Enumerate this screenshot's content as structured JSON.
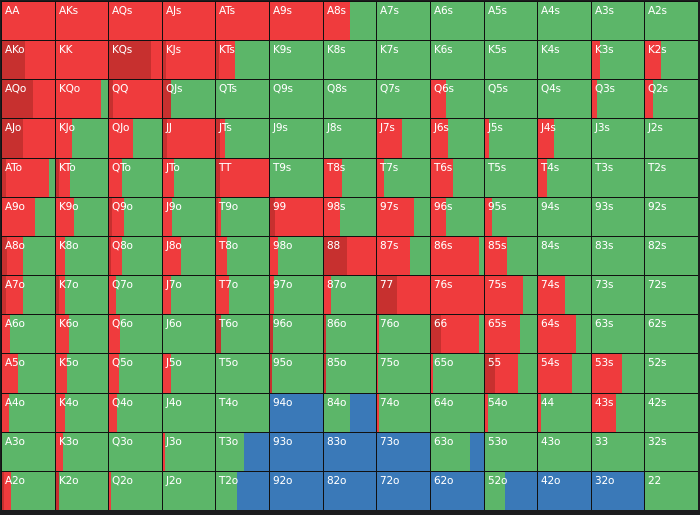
{
  "chart_data": {
    "type": "heatmap",
    "description_of_values": "per hand: [hand, dark-red %, red %, blue %]; remainder green",
    "colors": {
      "dark_red": "#c7302f",
      "red": "#ef3b3d",
      "green": "#5cb669",
      "blue": "#3a79b8"
    },
    "rows": [
      [
        [
          "AA",
          0,
          100,
          0
        ],
        [
          "AKs",
          0,
          100,
          0
        ],
        [
          "AQs",
          0,
          100,
          0
        ],
        [
          "AJs",
          0,
          100,
          0
        ],
        [
          "ATs",
          0,
          100,
          0
        ],
        [
          "A9s",
          0,
          100,
          0
        ],
        [
          "A8s",
          0,
          50,
          0
        ],
        [
          "A7s",
          0,
          0,
          0
        ],
        [
          "A6s",
          0,
          0,
          0
        ],
        [
          "A5s",
          0,
          0,
          0
        ],
        [
          "A4s",
          0,
          0,
          0
        ],
        [
          "A3s",
          0,
          0,
          0
        ],
        [
          "A2s",
          0,
          0,
          0
        ]
      ],
      [
        [
          "AKo",
          43,
          57,
          0
        ],
        [
          "KK",
          0,
          100,
          0
        ],
        [
          "KQs",
          80,
          20,
          0
        ],
        [
          "KJs",
          6,
          94,
          0
        ],
        [
          "KTs",
          5,
          31,
          0
        ],
        [
          "K9s",
          0,
          0,
          0
        ],
        [
          "K8s",
          0,
          0,
          0
        ],
        [
          "K7s",
          0,
          0,
          0
        ],
        [
          "K6s",
          0,
          0,
          0
        ],
        [
          "K5s",
          0,
          0,
          0
        ],
        [
          "K4s",
          0,
          0,
          0
        ],
        [
          "K3s",
          0,
          15,
          0
        ],
        [
          "K2s",
          0,
          30,
          0
        ]
      ],
      [
        [
          "AQo",
          58,
          42,
          0
        ],
        [
          "KQo",
          0,
          87,
          0
        ],
        [
          "QQ",
          8,
          92,
          0
        ],
        [
          "QJs",
          16,
          0,
          0
        ],
        [
          "QTs",
          0,
          0,
          0
        ],
        [
          "Q9s",
          0,
          0,
          0
        ],
        [
          "Q8s",
          0,
          0,
          0
        ],
        [
          "Q7s",
          0,
          0,
          0
        ],
        [
          "Q6s",
          0,
          28,
          0
        ],
        [
          "Q5s",
          0,
          0,
          0
        ],
        [
          "Q4s",
          0,
          0,
          0
        ],
        [
          "Q3s",
          0,
          10,
          0
        ],
        [
          "Q2s",
          0,
          15,
          0
        ]
      ],
      [
        [
          "AJo",
          40,
          60,
          0
        ],
        [
          "KJo",
          0,
          31,
          0
        ],
        [
          "QJo",
          0,
          45,
          0
        ],
        [
          "JJ",
          8,
          92,
          0
        ],
        [
          "JTs",
          8,
          9,
          0
        ],
        [
          "J9s",
          0,
          0,
          0
        ],
        [
          "J8s",
          0,
          0,
          0
        ],
        [
          "J7s",
          0,
          48,
          0
        ],
        [
          "J6s",
          0,
          32,
          0
        ],
        [
          "J5s",
          0,
          7,
          0
        ],
        [
          "J4s",
          0,
          30,
          0
        ],
        [
          "J3s",
          0,
          0,
          0
        ],
        [
          "J2s",
          0,
          0,
          0
        ]
      ],
      [
        [
          "ATo",
          8,
          81,
          0
        ],
        [
          "KTo",
          5,
          21,
          0
        ],
        [
          "QTo",
          0,
          24,
          0
        ],
        [
          "JTo",
          0,
          22,
          0
        ],
        [
          "TT",
          8,
          92,
          0
        ],
        [
          "T9s",
          0,
          0,
          0
        ],
        [
          "T8s",
          0,
          34,
          0
        ],
        [
          "T7s",
          0,
          13,
          0
        ],
        [
          "T6s",
          0,
          41,
          0
        ],
        [
          "T5s",
          0,
          0,
          0
        ],
        [
          "T4s",
          0,
          17,
          0
        ],
        [
          "T3s",
          0,
          0,
          0
        ],
        [
          "T2s",
          0,
          0,
          0
        ]
      ],
      [
        [
          "A9o",
          0,
          62,
          0
        ],
        [
          "K9o",
          0,
          34,
          0
        ],
        [
          "Q9o",
          5,
          23,
          0
        ],
        [
          "J9o",
          0,
          18,
          0
        ],
        [
          "T9o",
          3,
          6,
          0
        ],
        [
          "99",
          10,
          90,
          0
        ],
        [
          "98s",
          0,
          30,
          0
        ],
        [
          "97s",
          0,
          70,
          0
        ],
        [
          "96s",
          0,
          28,
          0
        ],
        [
          "95s",
          0,
          13,
          0
        ],
        [
          "94s",
          0,
          0,
          0
        ],
        [
          "93s",
          0,
          0,
          0
        ],
        [
          "92s",
          0,
          0,
          0
        ]
      ],
      [
        [
          "A8o",
          10,
          30,
          0
        ],
        [
          "K8o",
          0,
          17,
          0
        ],
        [
          "Q8o",
          3,
          21,
          0
        ],
        [
          "J8o",
          0,
          34,
          0
        ],
        [
          "T8o",
          0,
          20,
          0
        ],
        [
          "98o",
          0,
          15,
          0
        ],
        [
          "88",
          45,
          55,
          0
        ],
        [
          "87s",
          0,
          62,
          0
        ],
        [
          "86s",
          0,
          90,
          0
        ],
        [
          "85s",
          0,
          42,
          0
        ],
        [
          "84s",
          0,
          0,
          0
        ],
        [
          "83s",
          0,
          0,
          0
        ],
        [
          "82s",
          0,
          0,
          0
        ]
      ],
      [
        [
          "A7o",
          8,
          32,
          0
        ],
        [
          "K7o",
          5,
          12,
          0
        ],
        [
          "Q7o",
          0,
          13,
          0
        ],
        [
          "J7o",
          0,
          16,
          0
        ],
        [
          "T7o",
          0,
          24,
          0
        ],
        [
          "97o",
          0,
          8,
          0
        ],
        [
          "87o",
          0,
          13,
          0
        ],
        [
          "77",
          38,
          62,
          0
        ],
        [
          "76s",
          0,
          100,
          0
        ],
        [
          "75s",
          0,
          73,
          0
        ],
        [
          "74s",
          0,
          50,
          0
        ],
        [
          "73s",
          0,
          0,
          0
        ],
        [
          "72s",
          0,
          0,
          0
        ]
      ],
      [
        [
          "A6o",
          0,
          15,
          0
        ],
        [
          "K6o",
          0,
          25,
          0
        ],
        [
          "Q6o",
          0,
          20,
          0
        ],
        [
          "J6o",
          0,
          0,
          0
        ],
        [
          "T6o",
          9,
          0,
          0
        ],
        [
          "96o",
          5,
          0,
          0
        ],
        [
          "86o",
          4,
          0,
          0
        ],
        [
          "76o",
          0,
          3,
          0
        ],
        [
          "66",
          18,
          72,
          0
        ],
        [
          "65s",
          0,
          67,
          0
        ],
        [
          "64s",
          0,
          72,
          0
        ],
        [
          "63s",
          0,
          0,
          0
        ],
        [
          "62s",
          0,
          0,
          0
        ]
      ],
      [
        [
          "A5o",
          0,
          30,
          0
        ],
        [
          "K5o",
          0,
          21,
          0
        ],
        [
          "Q5o",
          0,
          18,
          0
        ],
        [
          "J5o",
          0,
          15,
          0
        ],
        [
          "T5o",
          0,
          0,
          0
        ],
        [
          "95o",
          4,
          0,
          0
        ],
        [
          "85o",
          4,
          0,
          0
        ],
        [
          "75o",
          0,
          2,
          0
        ],
        [
          "65o",
          0,
          3,
          0
        ],
        [
          "55",
          20,
          44,
          0
        ],
        [
          "54s",
          0,
          64,
          0
        ],
        [
          "53s",
          0,
          57,
          0
        ],
        [
          "52s",
          0,
          0,
          0
        ]
      ],
      [
        [
          "A4o",
          0,
          13,
          0
        ],
        [
          "K4o",
          0,
          18,
          0
        ],
        [
          "Q4o",
          0,
          15,
          0
        ],
        [
          "J4o",
          0,
          0,
          0
        ],
        [
          "T4o",
          0,
          0,
          0
        ],
        [
          "94o",
          0,
          0,
          100
        ],
        [
          "84o",
          0,
          0,
          50
        ],
        [
          "74o",
          0,
          4,
          0
        ],
        [
          "64o",
          0,
          0,
          0
        ],
        [
          "54o",
          0,
          6,
          0
        ],
        [
          "44",
          0,
          6,
          0
        ],
        [
          "43s",
          0,
          47,
          0
        ],
        [
          "42s",
          0,
          0,
          0
        ]
      ],
      [
        [
          "A3o",
          0,
          0,
          0
        ],
        [
          "K3o",
          0,
          13,
          0
        ],
        [
          "Q3o",
          0,
          0,
          0
        ],
        [
          "J3o",
          0,
          3,
          0
        ],
        [
          "T3o",
          0,
          0,
          48
        ],
        [
          "93o",
          0,
          0,
          100
        ],
        [
          "83o",
          0,
          0,
          100
        ],
        [
          "73o",
          0,
          0,
          100
        ],
        [
          "63o",
          0,
          0,
          27
        ],
        [
          "53o",
          0,
          0,
          0
        ],
        [
          "43o",
          0,
          0,
          0
        ],
        [
          "33",
          0,
          0,
          0
        ],
        [
          "32s",
          0,
          0,
          0
        ]
      ],
      [
        [
          "A2o",
          3,
          14,
          0
        ],
        [
          "K2o",
          6,
          0,
          0
        ],
        [
          "Q2o",
          0,
          3,
          0
        ],
        [
          "J2o",
          0,
          0,
          0
        ],
        [
          "T2o",
          0,
          0,
          60
        ],
        [
          "92o",
          0,
          0,
          100
        ],
        [
          "82o",
          0,
          0,
          100
        ],
        [
          "72o",
          0,
          0,
          100
        ],
        [
          "62o",
          0,
          0,
          100
        ],
        [
          "52o",
          0,
          0,
          62
        ],
        [
          "42o",
          0,
          0,
          100
        ],
        [
          "32o",
          0,
          0,
          100
        ],
        [
          "22",
          0,
          0,
          0
        ]
      ]
    ]
  }
}
